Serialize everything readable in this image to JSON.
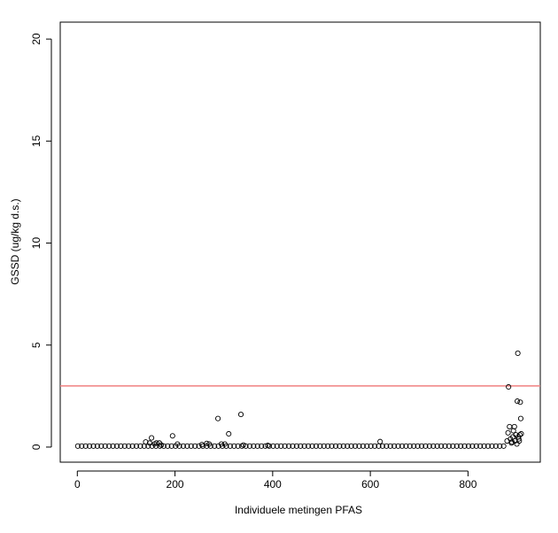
{
  "chart_data": {
    "type": "scatter",
    "xlabel": "Individuele metingen PFAS",
    "ylabel": "GSSD (ug/kg d.s.)",
    "xlim": [
      -35,
      948
    ],
    "ylim": [
      -0.74,
      20.83
    ],
    "xticks": [
      0,
      200,
      400,
      600,
      800
    ],
    "yticks": [
      0,
      5,
      10,
      15,
      20
    ],
    "reference_line": {
      "value": 3,
      "color": "#f08080"
    },
    "marker_color": "#000000",
    "x": [
      1,
      9,
      17,
      25,
      33,
      41,
      49,
      57,
      65,
      73,
      81,
      89,
      97,
      105,
      113,
      121,
      129,
      137,
      145,
      153,
      161,
      169,
      177,
      185,
      193,
      201,
      209,
      217,
      225,
      233,
      241,
      249,
      257,
      265,
      273,
      281,
      289,
      297,
      305,
      313,
      321,
      329,
      337,
      345,
      353,
      361,
      369,
      377,
      385,
      393,
      401,
      409,
      417,
      425,
      433,
      441,
      449,
      457,
      465,
      473,
      481,
      489,
      497,
      505,
      513,
      521,
      529,
      537,
      545,
      553,
      561,
      569,
      577,
      585,
      593,
      601,
      609,
      617,
      625,
      633,
      641,
      649,
      657,
      665,
      673,
      681,
      689,
      697,
      705,
      713,
      721,
      729,
      737,
      745,
      753,
      761,
      769,
      777,
      785,
      793,
      801,
      809,
      817,
      825,
      833,
      841,
      849,
      857,
      865,
      873,
      140,
      148,
      152,
      158,
      162,
      168,
      172,
      195,
      205,
      255,
      265,
      270,
      288,
      295,
      302,
      310,
      335,
      340,
      390,
      620,
      880,
      882,
      883,
      885,
      887,
      889,
      890,
      892,
      893,
      895,
      896,
      898,
      900,
      901,
      902,
      903,
      904,
      905,
      906,
      907,
      908,
      909
    ],
    "y": [
      0.05,
      0.05,
      0.05,
      0.05,
      0.05,
      0.05,
      0.05,
      0.05,
      0.05,
      0.05,
      0.05,
      0.05,
      0.05,
      0.05,
      0.05,
      0.05,
      0.05,
      0.05,
      0.05,
      0.05,
      0.05,
      0.05,
      0.05,
      0.05,
      0.05,
      0.05,
      0.05,
      0.05,
      0.05,
      0.05,
      0.05,
      0.05,
      0.05,
      0.05,
      0.05,
      0.05,
      0.05,
      0.05,
      0.05,
      0.05,
      0.05,
      0.05,
      0.05,
      0.05,
      0.05,
      0.05,
      0.05,
      0.05,
      0.05,
      0.05,
      0.05,
      0.05,
      0.05,
      0.05,
      0.05,
      0.05,
      0.05,
      0.05,
      0.05,
      0.05,
      0.05,
      0.05,
      0.05,
      0.05,
      0.05,
      0.05,
      0.05,
      0.05,
      0.05,
      0.05,
      0.05,
      0.05,
      0.05,
      0.05,
      0.05,
      0.05,
      0.05,
      0.05,
      0.05,
      0.05,
      0.05,
      0.05,
      0.05,
      0.05,
      0.05,
      0.05,
      0.05,
      0.05,
      0.05,
      0.05,
      0.05,
      0.05,
      0.05,
      0.05,
      0.05,
      0.05,
      0.05,
      0.05,
      0.05,
      0.05,
      0.05,
      0.05,
      0.05,
      0.05,
      0.05,
      0.05,
      0.05,
      0.05,
      0.05,
      0.05,
      0.25,
      0.2,
      0.45,
      0.15,
      0.2,
      0.2,
      0.1,
      0.55,
      0.15,
      0.12,
      0.18,
      0.15,
      1.4,
      0.15,
      0.15,
      0.65,
      1.6,
      0.1,
      0.08,
      0.27,
      0.3,
      0.7,
      2.95,
      1.0,
      0.4,
      0.2,
      0.25,
      0.5,
      0.8,
      1.0,
      0.3,
      0.6,
      0.15,
      2.25,
      4.6,
      0.5,
      0.4,
      0.3,
      0.6,
      2.2,
      1.4,
      0.65
    ]
  }
}
